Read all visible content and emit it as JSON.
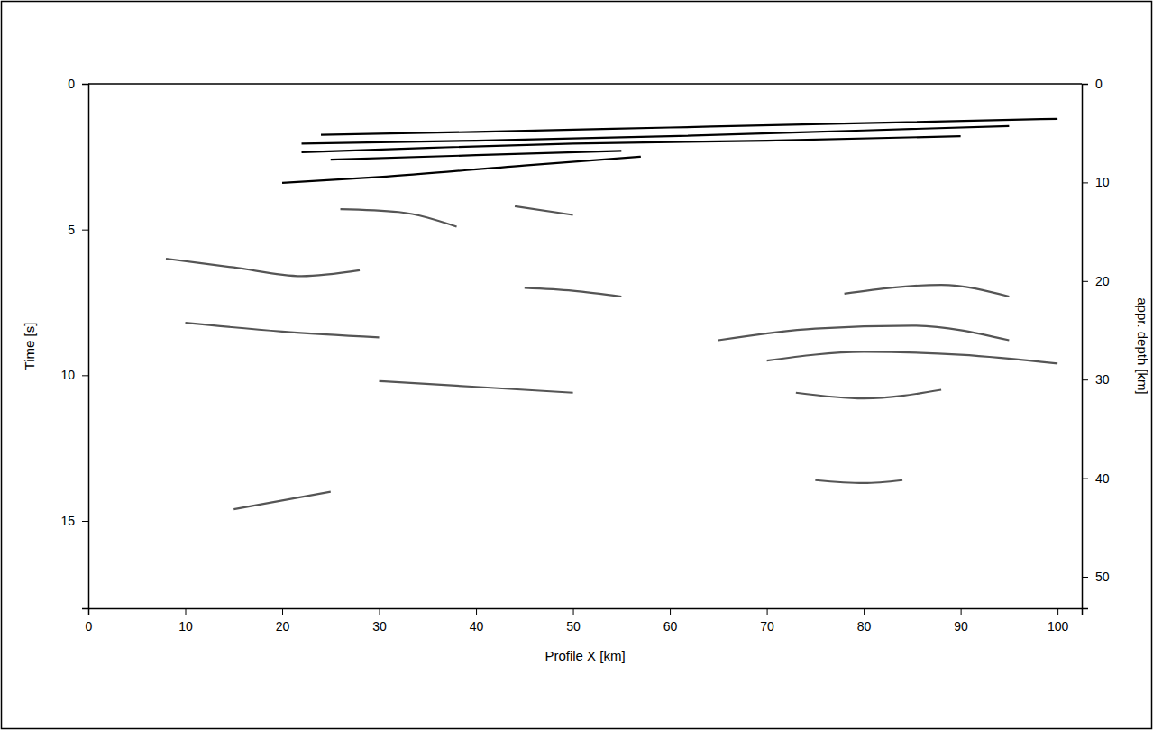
{
  "chart_data": {
    "type": "line",
    "xlabel": "Profile X [km]",
    "ylabel": "Time [s]",
    "y2label": "appr. depth [km]",
    "xlim": [
      0,
      102.5
    ],
    "xticks": [
      0,
      10,
      20,
      30,
      40,
      50,
      60,
      70,
      80,
      90,
      100
    ],
    "ylim": [
      0,
      18
    ],
    "yticks": [
      0,
      5,
      10,
      15
    ],
    "y2lim": [
      0,
      53.2
    ],
    "y2ticks": [
      0,
      10,
      20,
      30,
      40,
      50
    ],
    "grid": false,
    "series": [
      {
        "color": "#000000",
        "x": [
          24,
          40,
          60,
          80,
          100
        ],
        "values": [
          1.75,
          1.65,
          1.5,
          1.35,
          1.2
        ]
      },
      {
        "color": "#000000",
        "x": [
          22,
          40,
          60,
          80,
          95
        ],
        "values": [
          2.05,
          1.95,
          1.8,
          1.6,
          1.45
        ]
      },
      {
        "color": "#000000",
        "x": [
          22,
          35,
          50,
          70,
          90
        ],
        "values": [
          2.35,
          2.2,
          2.05,
          1.95,
          1.8
        ]
      },
      {
        "color": "#000000",
        "x": [
          25,
          40,
          55
        ],
        "values": [
          2.6,
          2.45,
          2.3
        ]
      },
      {
        "color": "#000000",
        "x": [
          20,
          30,
          45,
          57
        ],
        "values": [
          3.4,
          3.2,
          2.8,
          2.5
        ]
      },
      {
        "color": "#555555",
        "x": [
          8,
          15,
          22,
          28
        ],
        "values": [
          6.0,
          6.3,
          6.6,
          6.4
        ]
      },
      {
        "color": "#555555",
        "x": [
          10,
          20,
          30
        ],
        "values": [
          8.2,
          8.5,
          8.7
        ]
      },
      {
        "color": "#555555",
        "x": [
          65,
          75,
          85,
          95
        ],
        "values": [
          8.8,
          8.4,
          8.3,
          8.8
        ]
      },
      {
        "color": "#555555",
        "x": [
          70,
          80,
          90,
          100
        ],
        "values": [
          9.5,
          9.2,
          9.3,
          9.6
        ]
      },
      {
        "color": "#555555",
        "x": [
          73,
          80,
          88
        ],
        "values": [
          10.6,
          10.8,
          10.5
        ]
      },
      {
        "color": "#555555",
        "x": [
          78,
          88,
          95
        ],
        "values": [
          7.2,
          6.9,
          7.3
        ]
      },
      {
        "color": "#555555",
        "x": [
          26,
          32,
          38
        ],
        "values": [
          4.3,
          4.4,
          4.9
        ]
      },
      {
        "color": "#555555",
        "x": [
          44,
          50
        ],
        "values": [
          4.2,
          4.5
        ]
      },
      {
        "color": "#555555",
        "x": [
          15,
          20,
          25
        ],
        "values": [
          14.6,
          14.3,
          14.0
        ]
      },
      {
        "color": "#555555",
        "x": [
          75,
          80,
          84
        ],
        "values": [
          13.6,
          13.7,
          13.6
        ]
      },
      {
        "color": "#555555",
        "x": [
          45,
          50,
          55
        ],
        "values": [
          7.0,
          7.1,
          7.3
        ]
      },
      {
        "color": "#555555",
        "x": [
          30,
          40,
          50
        ],
        "values": [
          10.2,
          10.4,
          10.6
        ]
      }
    ]
  }
}
